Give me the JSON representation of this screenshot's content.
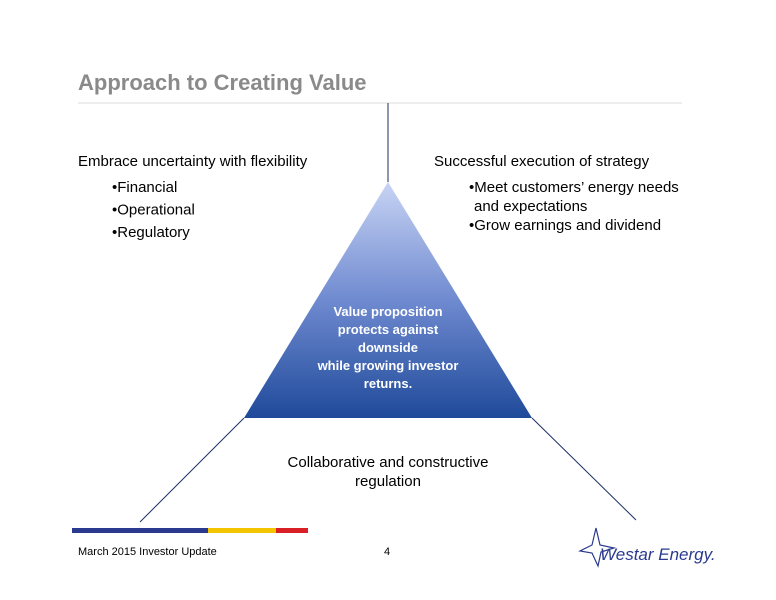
{
  "header": {
    "title": "Approach to Creating Value"
  },
  "left": {
    "heading": "Embrace uncertainty with flexibility",
    "bullets": [
      "•Financial",
      "•Operational",
      "•Regulatory"
    ]
  },
  "right": {
    "heading": "Successful execution of strategy",
    "bullets": [
      "•Meet customers’ energy needs",
      "and expectations",
      "•Grow earnings and dividend"
    ]
  },
  "center": {
    "lines": [
      "Value proposition",
      "protects against",
      "downside",
      "while growing investor",
      "returns."
    ]
  },
  "bottom": {
    "lines": [
      "Collaborative and constructive",
      "regulation"
    ]
  },
  "footer": {
    "text": "March 2015 Investor Update",
    "page": "4",
    "logo": "Westar Energy."
  }
}
